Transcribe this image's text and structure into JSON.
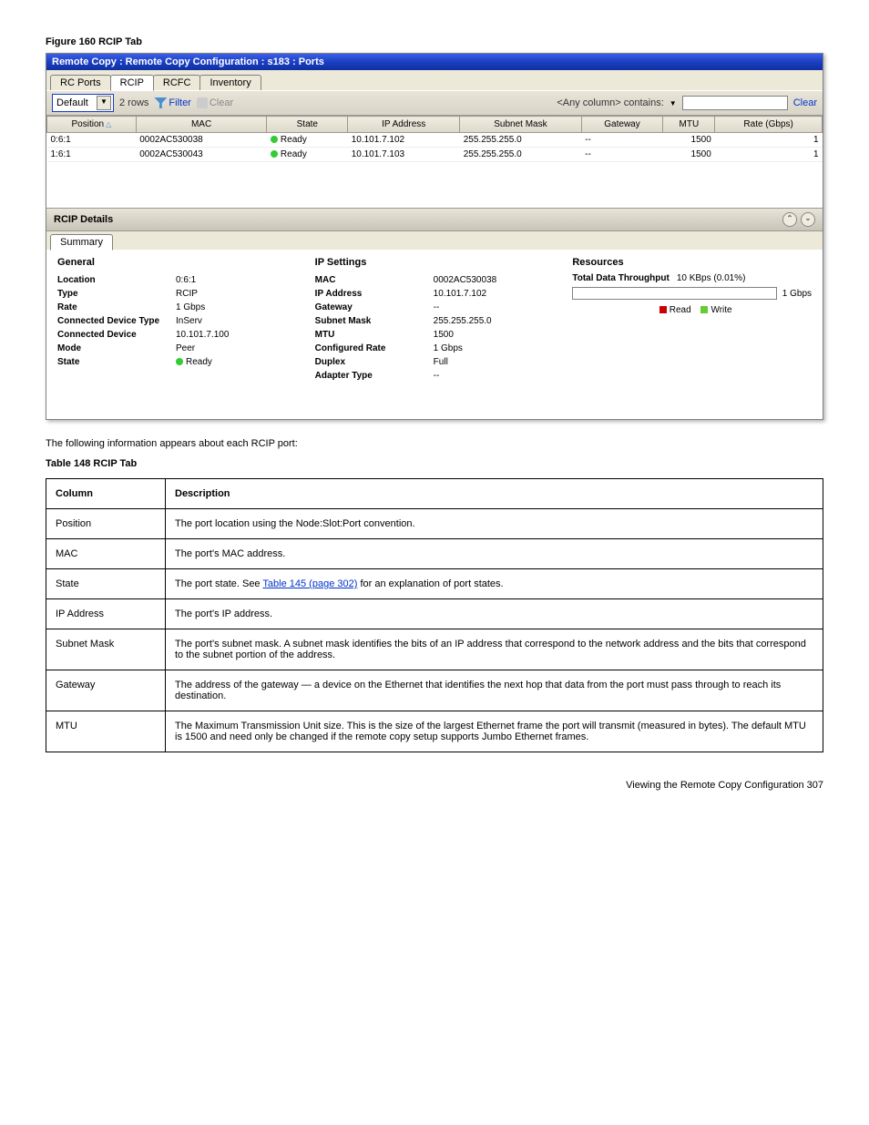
{
  "figure_label": "Figure 160 RCIP Tab",
  "window": {
    "title": "Remote Copy : Remote Copy Configuration : s183 : Ports"
  },
  "tabs": [
    "RC Ports",
    "RCIP",
    "RCFC",
    "Inventory"
  ],
  "active_tab": 1,
  "toolbar": {
    "default_label": "Default",
    "rows_label": "2 rows",
    "filter_label": "Filter",
    "clear_label": "Clear",
    "contains_label": "<Any column> contains:",
    "search_value": "",
    "clear_link": "Clear"
  },
  "grid": {
    "columns": [
      "Position",
      "MAC",
      "State",
      "IP Address",
      "Subnet Mask",
      "Gateway",
      "MTU",
      "Rate (Gbps)"
    ],
    "sort_col": 0,
    "rows": [
      {
        "position": "0:6:1",
        "mac": "0002AC530038",
        "state": "Ready",
        "ip": "10.101.7.102",
        "mask": "255.255.255.0",
        "gw": "--",
        "mtu": "1500",
        "rate": "1"
      },
      {
        "position": "1:6:1",
        "mac": "0002AC530043",
        "state": "Ready",
        "ip": "10.101.7.103",
        "mask": "255.255.255.0",
        "gw": "--",
        "mtu": "1500",
        "rate": "1"
      }
    ]
  },
  "details": {
    "title": "RCIP Details",
    "sub_tab": "Summary",
    "general": {
      "h": "General",
      "items": [
        {
          "k": "Location",
          "v": "0:6:1"
        },
        {
          "k": "Type",
          "v": "RCIP"
        },
        {
          "k": "Rate",
          "v": "1 Gbps"
        },
        {
          "k": "Connected Device Type",
          "v": "InServ"
        },
        {
          "k": "Connected Device",
          "v": "10.101.7.100"
        },
        {
          "k": "Mode",
          "v": "Peer"
        },
        {
          "k": "State",
          "v": "Ready",
          "dot": true
        }
      ]
    },
    "ip": {
      "h": "IP Settings",
      "items": [
        {
          "k": "MAC",
          "v": "0002AC530038"
        },
        {
          "k": "IP Address",
          "v": "10.101.7.102"
        },
        {
          "k": "Gateway",
          "v": "--"
        },
        {
          "k": "Subnet Mask",
          "v": "255.255.255.0"
        },
        {
          "k": "MTU",
          "v": "1500"
        },
        {
          "k": "Configured Rate",
          "v": "1 Gbps"
        },
        {
          "k": "Duplex",
          "v": "Full"
        },
        {
          "k": "Adapter Type",
          "v": "--"
        }
      ]
    },
    "resources": {
      "h": "Resources",
      "throughput_label": "Total Data Throughput",
      "throughput_value": "10 KBps (0.01%)",
      "scale_max": "1 Gbps",
      "legend_read": "Read",
      "legend_write": "Write",
      "read_color": "#cc0000",
      "write_color": "#66cc33"
    }
  },
  "doc": {
    "intro": "The following information appears about each RCIP port:",
    "table_title": "Table 148 RCIP Tab",
    "cols": [
      "Column",
      "Description"
    ],
    "rows": [
      [
        "Position",
        "The port location using the Node:Slot:Port convention."
      ],
      [
        "MAC",
        "The port's MAC address."
      ],
      [
        "State",
        "The port state. See ",
        {
          "link": "Table 145 (page 302)"
        },
        " for an explanation of port states."
      ],
      [
        "IP Address",
        "The port's IP address."
      ],
      [
        "Subnet Mask",
        "The port's subnet mask. A subnet mask identifies the bits of an IP address that correspond to the network address and the bits that correspond to the subnet portion of the address."
      ],
      [
        "Gateway",
        "The address of the gateway — a device on the Ethernet that identifies the next hop that data from the port must pass through to reach its destination."
      ],
      [
        "MTU",
        "The Maximum Transmission Unit size. This is the size of the largest Ethernet frame the port will transmit (measured in bytes). The default MTU is 1500 and need only be changed if the remote copy setup supports Jumbo Ethernet frames."
      ]
    ]
  },
  "page_footer": "Viewing the Remote Copy Configuration 307"
}
